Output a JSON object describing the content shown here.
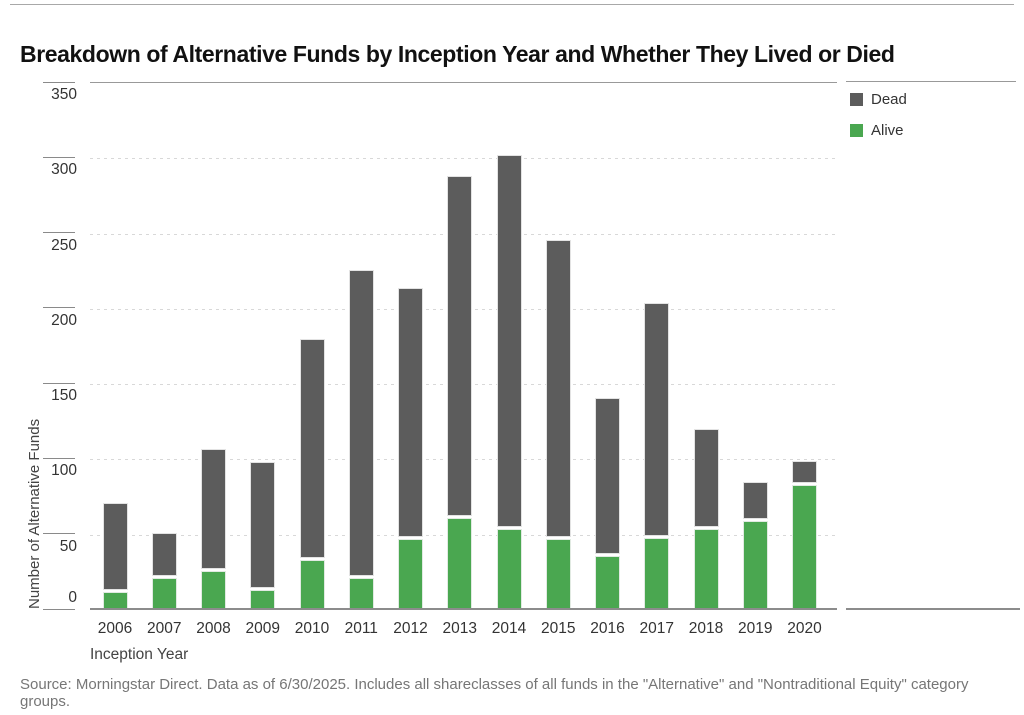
{
  "page": {
    "source_note": "Source: Morningstar Direct. Data as of 6/30/2025. Includes all shareclasses of all funds in the \"Alternative\" and \"Nontraditional Equity\" category groups."
  },
  "colors": {
    "dead": "#5c5c5c",
    "alive": "#4aa750",
    "grid": "#d8d8d8",
    "axis": "#8c8c8c",
    "rule": "#999999",
    "tick_text": "#333333",
    "source_text": "#767676"
  },
  "legend": {
    "items": [
      {
        "label": "Dead",
        "color_key": "dead"
      },
      {
        "label": "Alive",
        "color_key": "alive"
      }
    ]
  },
  "chart_data": {
    "type": "bar",
    "stacked": true,
    "title": "Breakdown of Alternative Funds by Inception Year and Whether They Lived or Died",
    "xlabel": "Inception Year",
    "ylabel": "Number of Alternative Funds",
    "ylim": [
      0,
      350
    ],
    "y_ticks": [
      350,
      300,
      250,
      200,
      150,
      100,
      50,
      0
    ],
    "grid": "dashed-horizontal",
    "legend_position": "top-right",
    "categories": [
      "2006",
      "2007",
      "2008",
      "2009",
      "2010",
      "2011",
      "2012",
      "2013",
      "2014",
      "2015",
      "2016",
      "2017",
      "2018",
      "2019",
      "2020"
    ],
    "series": [
      {
        "name": "Alive",
        "color_key": "alive",
        "values": [
          12,
          21,
          26,
          13,
          33,
          21,
          47,
          61,
          54,
          47,
          36,
          48,
          54,
          59,
          83
        ]
      },
      {
        "name": "Dead",
        "color_key": "dead",
        "values": [
          59,
          30,
          81,
          85,
          147,
          205,
          167,
          227,
          248,
          199,
          105,
          156,
          66,
          26,
          16
        ]
      }
    ],
    "totals": [
      71,
      51,
      107,
      98,
      180,
      226,
      214,
      288,
      302,
      246,
      141,
      204,
      120,
      85,
      99
    ]
  }
}
